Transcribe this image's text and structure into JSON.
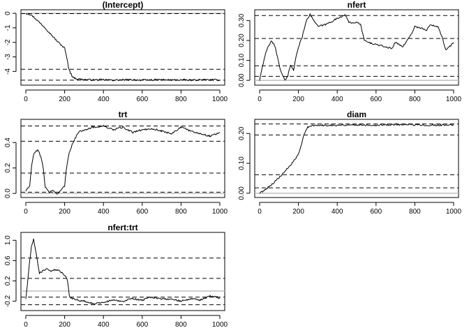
{
  "chart_data": [
    {
      "type": "line",
      "title": "(Intercept)",
      "xlim": [
        0,
        1000
      ],
      "ylim": [
        -4.75,
        0.05
      ],
      "x_ticks": [
        "0",
        "200",
        "400",
        "600",
        "800",
        "1000"
      ],
      "y_ticks": [
        "0",
        "-1",
        "-2",
        "-3",
        "-4"
      ],
      "y_tick_values": [
        0,
        -1,
        -2,
        -3,
        -4
      ],
      "reference_lines": [
        -0.02,
        -3.85,
        -4.6
      ],
      "zero_line": true,
      "series": [
        {
          "x": [
            0,
            20,
            40,
            60,
            80,
            100,
            120,
            140,
            160,
            180,
            200,
            210,
            220,
            230,
            240,
            250,
            270,
            300,
            350,
            400,
            450,
            500,
            550,
            600,
            650,
            700,
            750,
            800,
            850,
            900,
            950,
            1000
          ],
          "y": [
            0,
            -0.05,
            -0.25,
            -0.5,
            -0.75,
            -1.0,
            -1.3,
            -1.6,
            -1.9,
            -2.15,
            -2.4,
            -3.0,
            -3.7,
            -4.1,
            -4.35,
            -4.45,
            -4.52,
            -4.56,
            -4.58,
            -4.57,
            -4.6,
            -4.58,
            -4.57,
            -4.6,
            -4.58,
            -4.57,
            -4.59,
            -4.58,
            -4.6,
            -4.57,
            -4.58,
            -4.59
          ]
        }
      ]
    },
    {
      "type": "line",
      "title": "nfert",
      "xlim": [
        0,
        1000
      ],
      "ylim": [
        -0.01,
        0.34
      ],
      "x_ticks": [
        "0",
        "200",
        "400",
        "600",
        "800",
        "1000"
      ],
      "y_ticks": [
        "0.00",
        "0.10",
        "0.20",
        "0.30"
      ],
      "y_tick_values": [
        0,
        0.1,
        0.2,
        0.3
      ],
      "reference_lines": [
        0.325,
        0.21,
        0.073,
        0.02
      ],
      "zero_line": true,
      "series": [
        {
          "x": [
            0,
            10,
            20,
            30,
            40,
            60,
            80,
            100,
            115,
            130,
            145,
            160,
            175,
            190,
            205,
            220,
            240,
            260,
            280,
            300,
            340,
            380,
            420,
            440,
            460,
            500,
            520,
            540,
            560,
            600,
            640,
            680,
            700,
            740,
            780,
            800,
            840,
            860,
            880,
            920,
            940,
            960,
            980,
            1000
          ],
          "y": [
            0.0,
            0.05,
            0.09,
            0.13,
            0.16,
            0.2,
            0.17,
            0.08,
            0.03,
            0.0,
            0.02,
            0.08,
            0.05,
            0.13,
            0.18,
            0.22,
            0.3,
            0.33,
            0.3,
            0.27,
            0.28,
            0.3,
            0.32,
            0.33,
            0.29,
            0.29,
            0.28,
            0.2,
            0.19,
            0.18,
            0.17,
            0.16,
            0.19,
            0.17,
            0.23,
            0.27,
            0.26,
            0.25,
            0.28,
            0.27,
            0.22,
            0.15,
            0.17,
            0.19
          ]
        }
      ]
    },
    {
      "type": "line",
      "title": "trt",
      "xlim": [
        0,
        1000
      ],
      "ylim": [
        -0.01,
        0.56
      ],
      "x_ticks": [
        "0",
        "200",
        "400",
        "600",
        "800",
        "1000"
      ],
      "y_ticks": [
        "0.0",
        "0.2",
        "0.4"
      ],
      "y_tick_values": [
        0,
        0.2,
        0.4
      ],
      "reference_lines": [
        0.53,
        0.41,
        0.16,
        0.01
      ],
      "zero_line": true,
      "series": [
        {
          "x": [
            0,
            20,
            30,
            40,
            50,
            60,
            70,
            80,
            90,
            100,
            120,
            140,
            160,
            180,
            200,
            210,
            220,
            230,
            250,
            270,
            300,
            350,
            400,
            450,
            500,
            550,
            600,
            650,
            700,
            750,
            800,
            850,
            900,
            950,
            1000
          ],
          "y": [
            0.02,
            0.06,
            0.22,
            0.3,
            0.33,
            0.34,
            0.32,
            0.27,
            0.2,
            0.05,
            0.01,
            0.02,
            0.0,
            0.02,
            0.06,
            0.2,
            0.3,
            0.35,
            0.42,
            0.48,
            0.5,
            0.52,
            0.53,
            0.5,
            0.52,
            0.48,
            0.5,
            0.51,
            0.49,
            0.47,
            0.52,
            0.49,
            0.47,
            0.45,
            0.48
          ]
        }
      ]
    },
    {
      "type": "line",
      "title": "diam",
      "xlim": [
        0,
        1000
      ],
      "ylim": [
        -0.005,
        0.238
      ],
      "x_ticks": [
        "0",
        "200",
        "400",
        "600",
        "800",
        "1000"
      ],
      "y_ticks": [
        "0.00",
        "0.10",
        "0.20"
      ],
      "y_tick_values": [
        0,
        0.1,
        0.2
      ],
      "reference_lines": [
        0.232,
        0.195,
        0.062,
        0.018
      ],
      "zero_line": true,
      "series": [
        {
          "x": [
            0,
            20,
            40,
            60,
            80,
            100,
            120,
            140,
            160,
            180,
            200,
            215,
            230,
            240,
            250,
            260,
            280,
            300,
            400,
            500,
            600,
            700,
            800,
            900,
            1000
          ],
          "y": [
            0.0,
            0.008,
            0.018,
            0.028,
            0.04,
            0.052,
            0.065,
            0.08,
            0.095,
            0.11,
            0.13,
            0.16,
            0.2,
            0.215,
            0.222,
            0.225,
            0.226,
            0.227,
            0.228,
            0.229,
            0.228,
            0.23,
            0.229,
            0.228,
            0.228
          ]
        }
      ]
    },
    {
      "type": "line",
      "title": "nfert:trt",
      "xlim": [
        0,
        1000
      ],
      "ylim": [
        -0.33,
        1.1
      ],
      "x_ticks": [
        "0",
        "200",
        "400",
        "600",
        "800",
        "1000"
      ],
      "y_ticks": [
        "-0.2",
        "0.2",
        "0.6",
        "1.0"
      ],
      "y_tick_values": [
        -0.2,
        0.2,
        0.6,
        1.0
      ],
      "reference_lines": [
        0.65,
        0.25,
        -0.12,
        -0.27
      ],
      "zero_line": true,
      "series": [
        {
          "x": [
            0,
            10,
            20,
            30,
            40,
            55,
            70,
            90,
            110,
            130,
            150,
            170,
            190,
            205,
            215,
            225,
            240,
            270,
            300,
            350,
            400,
            450,
            500,
            550,
            600,
            650,
            700,
            750,
            800,
            850,
            900,
            950,
            1000
          ],
          "y": [
            -0.15,
            0.2,
            0.6,
            0.9,
            1.03,
            0.7,
            0.35,
            0.4,
            0.45,
            0.38,
            0.42,
            0.4,
            0.35,
            0.3,
            0.2,
            -0.1,
            -0.15,
            -0.18,
            -0.2,
            -0.25,
            -0.22,
            -0.18,
            -0.2,
            -0.15,
            -0.18,
            -0.12,
            -0.15,
            -0.16,
            -0.2,
            -0.15,
            -0.18,
            -0.1,
            -0.13
          ]
        }
      ]
    }
  ]
}
